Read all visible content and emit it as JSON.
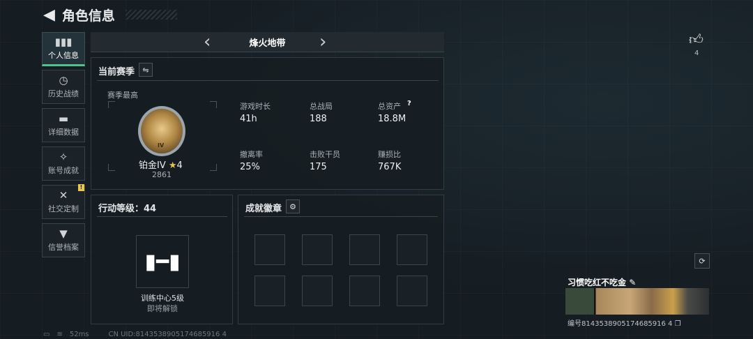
{
  "header": {
    "title": "角色信息"
  },
  "nav": [
    {
      "label": "个人信息",
      "icon": "bar-chart-icon",
      "active": true
    },
    {
      "label": "历史战绩",
      "icon": "clock-icon"
    },
    {
      "label": "详细数据",
      "icon": "folder-icon"
    },
    {
      "label": "账号成就",
      "icon": "medal-icon"
    },
    {
      "label": "社交定制",
      "icon": "tools-icon",
      "alert": "!"
    },
    {
      "label": "信誉档案",
      "icon": "shield-icon"
    }
  ],
  "mode": {
    "title": "烽火地带",
    "prev": "‹",
    "next": "›"
  },
  "season": {
    "title": "当前赛季",
    "best_label": "赛季最高",
    "rank": "铂金IV",
    "stars": "4",
    "score": "2861",
    "medal_text": "IV",
    "stats": [
      {
        "label": "游戏时长",
        "value": "41h"
      },
      {
        "label": "总战局",
        "value": "188"
      },
      {
        "label": "总资产",
        "value": "18.8M",
        "help": "?"
      },
      {
        "label": "撤离率",
        "value": "25%"
      },
      {
        "label": "击败干员",
        "value": "175"
      },
      {
        "label": "赚损比",
        "value": "767K"
      }
    ]
  },
  "action": {
    "title": "行动等级：44",
    "item_name": "训练中心5级",
    "item_status": "即将解锁"
  },
  "achievements": {
    "title": "成就徽章",
    "slots": 8
  },
  "profile": {
    "likes": "4",
    "name": "习惯吃红不吃金",
    "id": "编号8143538905174685916 4"
  },
  "status": {
    "ping": "52ms",
    "uid": "CN UID:8143538905174685916 4"
  },
  "colors": {
    "accent": "#4fc38f",
    "alert": "#e6c84a",
    "star": "#e8c64c"
  }
}
